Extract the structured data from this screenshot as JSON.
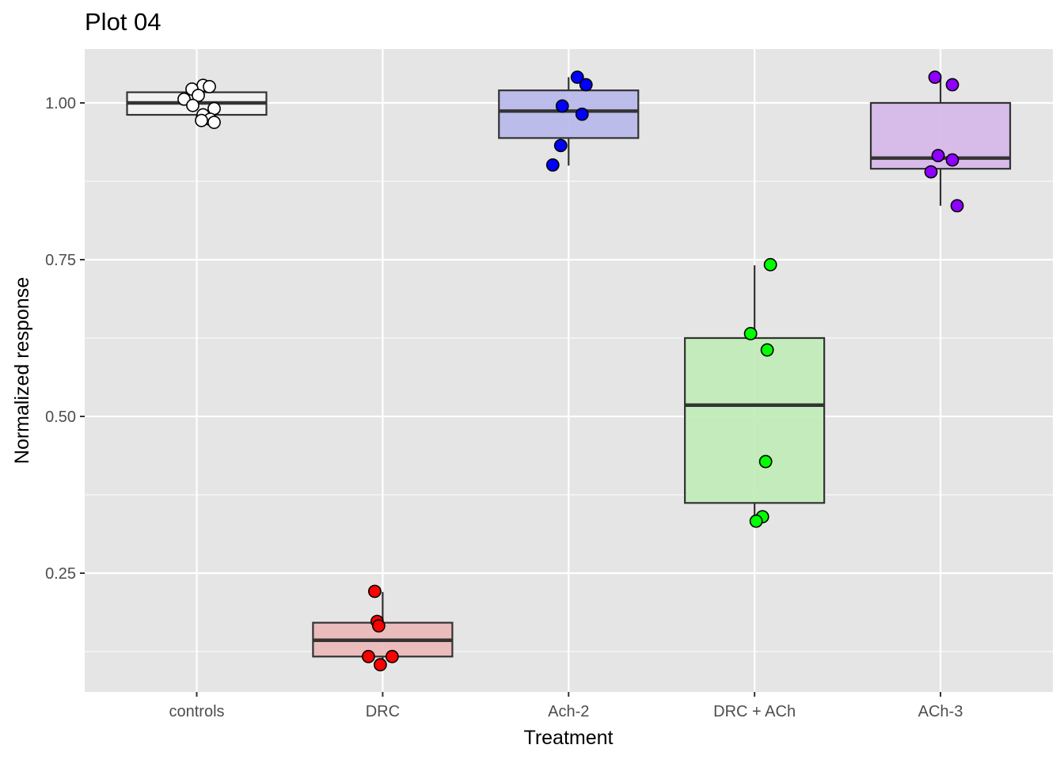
{
  "chart_data": {
    "type": "box",
    "title": "Plot 04",
    "xlabel": "Treatment",
    "ylabel": "Normalized response",
    "ylim": [
      0.06,
      1.085
    ],
    "yticks": [
      0.25,
      0.5,
      0.75,
      1.0
    ],
    "ytick_labels": [
      "0.25",
      "0.50",
      "0.75",
      "1.00"
    ],
    "grid": true,
    "legend": "none",
    "categories": [
      "controls",
      "DRC",
      "Ach-2",
      "DRC + ACh",
      "ACh-3"
    ],
    "series": [
      {
        "category": "controls",
        "fill": "#f2f2f2",
        "point_color": "#ffffff",
        "box": {
          "q1": 0.981,
          "median": 1.0,
          "q3": 1.017,
          "whisker_low": 0.969,
          "whisker_high": 1.028
        },
        "points": [
          1.028,
          1.026,
          1.022,
          1.012,
          1.006,
          0.996,
          0.991,
          0.981,
          0.974,
          0.972,
          0.969
        ]
      },
      {
        "category": "DRC",
        "fill": "#eab8b8",
        "point_color": "#ff0000",
        "box": {
          "q1": 0.117,
          "median": 0.143,
          "q3": 0.171,
          "whisker_low": 0.104,
          "whisker_high": 0.22
        },
        "points": [
          0.221,
          0.173,
          0.166,
          0.117,
          0.117,
          0.104
        ]
      },
      {
        "category": "Ach-2",
        "fill": "#b8b8ea",
        "point_color": "#0000ff",
        "box": {
          "q1": 0.944,
          "median": 0.987,
          "q3": 1.02,
          "whisker_low": 0.9,
          "whisker_high": 1.041
        },
        "points": [
          1.041,
          1.029,
          0.995,
          0.982,
          0.932,
          0.901
        ]
      },
      {
        "category": "DRC + ACh",
        "fill": "#c0ecb8",
        "point_color": "#00ff00",
        "box": {
          "q1": 0.362,
          "median": 0.518,
          "q3": 0.625,
          "whisker_low": 0.333,
          "whisker_high": 0.741
        },
        "points": [
          0.742,
          0.632,
          0.606,
          0.428,
          0.34,
          0.333
        ]
      },
      {
        "category": "ACh-3",
        "fill": "#d6b8ea",
        "point_color": "#8f00ff",
        "box": {
          "q1": 0.895,
          "median": 0.912,
          "q3": 1.0,
          "whisker_low": 0.836,
          "whisker_high": 1.041
        },
        "points": [
          1.041,
          1.029,
          0.916,
          0.909,
          0.89,
          0.836
        ]
      }
    ]
  }
}
